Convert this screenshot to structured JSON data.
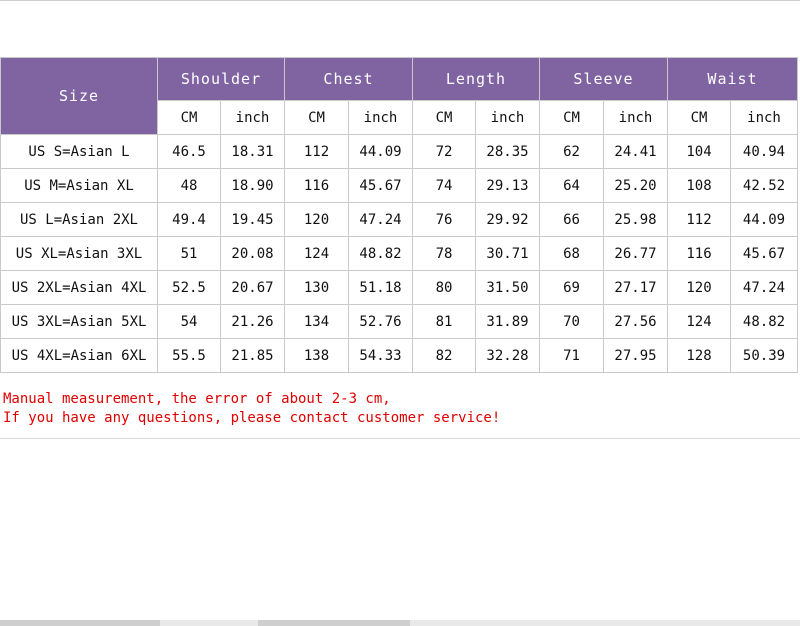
{
  "table": {
    "size_header": "Size",
    "groups": [
      "Shoulder",
      "Chest",
      "Length",
      "Sleeve",
      "Waist"
    ],
    "units": [
      "CM",
      "inch",
      "CM",
      "inch",
      "CM",
      "inch",
      "CM",
      "inch",
      "CM",
      "inch"
    ],
    "rows": [
      {
        "size": "US S=Asian L",
        "values": [
          "46.5",
          "18.31",
          "112",
          "44.09",
          "72",
          "28.35",
          "62",
          "24.41",
          "104",
          "40.94"
        ]
      },
      {
        "size": "US M=Asian XL",
        "values": [
          "48",
          "18.90",
          "116",
          "45.67",
          "74",
          "29.13",
          "64",
          "25.20",
          "108",
          "42.52"
        ]
      },
      {
        "size": "US L=Asian 2XL",
        "values": [
          "49.4",
          "19.45",
          "120",
          "47.24",
          "76",
          "29.92",
          "66",
          "25.98",
          "112",
          "44.09"
        ]
      },
      {
        "size": "US XL=Asian 3XL",
        "values": [
          "51",
          "20.08",
          "124",
          "48.82",
          "78",
          "30.71",
          "68",
          "26.77",
          "116",
          "45.67"
        ]
      },
      {
        "size": "US 2XL=Asian 4XL",
        "values": [
          "52.5",
          "20.67",
          "130",
          "51.18",
          "80",
          "31.50",
          "69",
          "27.17",
          "120",
          "47.24"
        ]
      },
      {
        "size": "US 3XL=Asian 5XL",
        "values": [
          "54",
          "21.26",
          "134",
          "52.76",
          "81",
          "31.89",
          "70",
          "27.56",
          "124",
          "48.82"
        ]
      },
      {
        "size": "US 4XL=Asian 6XL",
        "values": [
          "55.5",
          "21.85",
          "138",
          "54.33",
          "82",
          "32.28",
          "71",
          "27.95",
          "128",
          "50.39"
        ]
      }
    ]
  },
  "notes": {
    "line1": "Manual measurement, the error of about 2-3 cm,",
    "line2": "If you have any questions, please contact customer service!"
  },
  "colors": {
    "header_bg": "#8064a2",
    "note_text": "#e00000"
  }
}
